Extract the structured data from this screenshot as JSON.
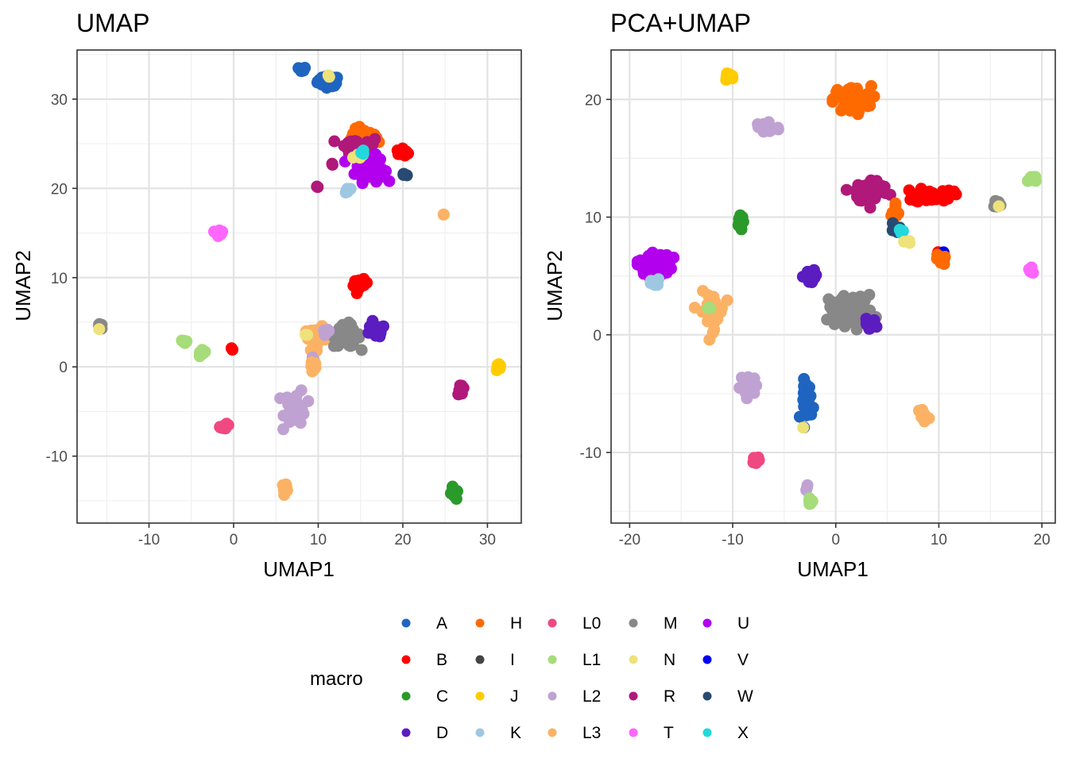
{
  "colors": {
    "A": "#1f64c0",
    "B": "#ff0000",
    "C": "#2a9a2a",
    "D": "#5b1cc0",
    "H": "#ff6a00",
    "I": "#444444",
    "J": "#ffcc00",
    "K": "#9ec8e2",
    "L0": "#f04880",
    "L1": "#a6dc7a",
    "L2": "#c0a2d2",
    "L3": "#fbb264",
    "M": "#888888",
    "N": "#eee27a",
    "R": "#b0187a",
    "T": "#ff66ff",
    "U": "#b200ee",
    "V": "#0000ee",
    "W": "#284a72",
    "X": "#22d8dc"
  },
  "legend": {
    "title": "macro",
    "columns": [
      [
        "A",
        "B",
        "C",
        "D"
      ],
      [
        "H",
        "I",
        "J",
        "K"
      ],
      [
        "L0",
        "L1",
        "L2",
        "L3"
      ],
      [
        "M",
        "N",
        "R",
        "T"
      ],
      [
        "U",
        "V",
        "W",
        "X"
      ]
    ]
  },
  "chart_data": [
    {
      "type": "scatter",
      "title": "UMAP",
      "xlabel": "UMAP1",
      "ylabel": "UMAP2",
      "xlim": [
        -18.5,
        34
      ],
      "ylim": [
        -17.5,
        35.5
      ],
      "xticks": [
        -10,
        0,
        10,
        20,
        30
      ],
      "yticks": [
        -10,
        0,
        10,
        20,
        30
      ],
      "grid": true,
      "clusters": [
        {
          "group": "A",
          "cx": 11.2,
          "cy": 32.0,
          "sx": 0.9,
          "sy": 0.4,
          "n": 50
        },
        {
          "group": "A",
          "cx": 8.1,
          "cy": 33.3,
          "sx": 0.3,
          "sy": 0.2,
          "n": 8
        },
        {
          "group": "N",
          "cx": 11.3,
          "cy": 32.6,
          "sx": 0.2,
          "sy": 0.1,
          "n": 2
        },
        {
          "group": "H",
          "cx": 15.4,
          "cy": 25.5,
          "sx": 1.2,
          "sy": 0.8,
          "n": 60
        },
        {
          "group": "R",
          "cx": 14.8,
          "cy": 24.6,
          "sx": 1.8,
          "sy": 0.9,
          "n": 35
        },
        {
          "group": "U",
          "cx": 16.1,
          "cy": 22.2,
          "sx": 1.2,
          "sy": 1.0,
          "n": 45
        },
        {
          "group": "B",
          "cx": 20.0,
          "cy": 24.0,
          "sx": 0.5,
          "sy": 0.3,
          "n": 15
        },
        {
          "group": "N",
          "cx": 14.7,
          "cy": 23.6,
          "sx": 0.4,
          "sy": 0.3,
          "n": 5
        },
        {
          "group": "X",
          "cx": 15.1,
          "cy": 24.1,
          "sx": 0.2,
          "sy": 0.2,
          "n": 3
        },
        {
          "group": "W",
          "cx": 20.1,
          "cy": 21.5,
          "sx": 0.2,
          "sy": 0.2,
          "n": 6
        },
        {
          "group": "R",
          "cx": 11.7,
          "cy": 22.7,
          "sx": 0.1,
          "sy": 0.1,
          "n": 2
        },
        {
          "group": "R",
          "cx": 9.9,
          "cy": 20.2,
          "sx": 0.1,
          "sy": 0.1,
          "n": 2
        },
        {
          "group": "K",
          "cx": 13.4,
          "cy": 19.7,
          "sx": 0.3,
          "sy": 0.2,
          "n": 5
        },
        {
          "group": "L3",
          "cx": 24.9,
          "cy": 17.1,
          "sx": 0.1,
          "sy": 0.1,
          "n": 2
        },
        {
          "group": "T",
          "cx": -1.7,
          "cy": 15.1,
          "sx": 0.3,
          "sy": 0.3,
          "n": 12
        },
        {
          "group": "B",
          "cx": 15.0,
          "cy": 9.2,
          "sx": 0.6,
          "sy": 0.4,
          "n": 18
        },
        {
          "group": "L3",
          "cx": 9.8,
          "cy": 3.2,
          "sx": 1.0,
          "sy": 0.9,
          "n": 25
        },
        {
          "group": "M",
          "cx": 13.4,
          "cy": 3.5,
          "sx": 1.1,
          "sy": 0.9,
          "n": 70
        },
        {
          "group": "D",
          "cx": 16.7,
          "cy": 4.0,
          "sx": 0.9,
          "sy": 0.5,
          "n": 25
        },
        {
          "group": "L2",
          "cx": 10.8,
          "cy": 3.8,
          "sx": 0.4,
          "sy": 0.4,
          "n": 5
        },
        {
          "group": "N",
          "cx": 8.6,
          "cy": 3.5,
          "sx": 0.2,
          "sy": 0.2,
          "n": 2
        },
        {
          "group": "L2",
          "cx": 9.4,
          "cy": 0.8,
          "sx": 0.2,
          "sy": 0.2,
          "n": 3
        },
        {
          "group": "L3",
          "cx": 9.5,
          "cy": 0.0,
          "sx": 0.3,
          "sy": 0.5,
          "n": 10
        },
        {
          "group": "M",
          "cx": -15.8,
          "cy": 4.5,
          "sx": 0.2,
          "sy": 0.2,
          "n": 8
        },
        {
          "group": "N",
          "cx": -15.7,
          "cy": 4.3,
          "sx": 0.1,
          "sy": 0.1,
          "n": 1
        },
        {
          "group": "L1",
          "cx": -5.8,
          "cy": 2.9,
          "sx": 0.3,
          "sy": 0.2,
          "n": 8
        },
        {
          "group": "L1",
          "cx": -3.8,
          "cy": 1.4,
          "sx": 0.4,
          "sy": 0.3,
          "n": 12
        },
        {
          "group": "B",
          "cx": -0.2,
          "cy": 2.0,
          "sx": 0.1,
          "sy": 0.1,
          "n": 2
        },
        {
          "group": "L2",
          "cx": 7.3,
          "cy": -4.5,
          "sx": 0.9,
          "sy": 1.4,
          "n": 40
        },
        {
          "group": "L0",
          "cx": -1.0,
          "cy": -6.7,
          "sx": 0.4,
          "sy": 0.2,
          "n": 12
        },
        {
          "group": "R",
          "cx": 26.9,
          "cy": -2.5,
          "sx": 0.3,
          "sy": 0.4,
          "n": 12
        },
        {
          "group": "J",
          "cx": 31.3,
          "cy": 0.0,
          "sx": 0.2,
          "sy": 0.4,
          "n": 10
        },
        {
          "group": "L3",
          "cx": 6.1,
          "cy": -13.5,
          "sx": 0.3,
          "sy": 0.3,
          "n": 12
        },
        {
          "group": "C",
          "cx": 26.0,
          "cy": -14.2,
          "sx": 0.2,
          "sy": 0.5,
          "n": 12
        }
      ]
    },
    {
      "type": "scatter",
      "title": "PCA+UMAP",
      "xlabel": "UMAP1",
      "ylabel": "UMAP2",
      "xlim": [
        -21.8,
        21.3
      ],
      "ylim": [
        -16,
        24.2
      ],
      "xticks": [
        -20,
        -10,
        0,
        10,
        20
      ],
      "yticks": [
        -10,
        0,
        10,
        20
      ],
      "grid": true,
      "clusters": [
        {
          "group": "J",
          "cx": -10.4,
          "cy": 21.9,
          "sx": 0.4,
          "sy": 0.3,
          "n": 12
        },
        {
          "group": "H",
          "cx": 1.6,
          "cy": 20.0,
          "sx": 1.3,
          "sy": 0.8,
          "n": 60
        },
        {
          "group": "L2",
          "cx": -6.8,
          "cy": 17.6,
          "sx": 1.0,
          "sy": 0.5,
          "n": 18
        },
        {
          "group": "R",
          "cx": 3.5,
          "cy": 12.2,
          "sx": 1.2,
          "sy": 0.7,
          "n": 60
        },
        {
          "group": "B",
          "cx": 9.5,
          "cy": 11.9,
          "sx": 1.3,
          "sy": 0.5,
          "n": 30
        },
        {
          "group": "H",
          "cx": 5.8,
          "cy": 10.8,
          "sx": 0.4,
          "sy": 0.5,
          "n": 8
        },
        {
          "group": "M",
          "cx": 15.6,
          "cy": 11.1,
          "sx": 0.3,
          "sy": 0.3,
          "n": 10
        },
        {
          "group": "N",
          "cx": 15.8,
          "cy": 11.0,
          "sx": 0.1,
          "sy": 0.1,
          "n": 1
        },
        {
          "group": "L1",
          "cx": 19.0,
          "cy": 13.2,
          "sx": 0.5,
          "sy": 0.3,
          "n": 12
        },
        {
          "group": "C",
          "cx": -9.4,
          "cy": 9.5,
          "sx": 0.3,
          "sy": 0.4,
          "n": 12
        },
        {
          "group": "W",
          "cx": 5.7,
          "cy": 9.0,
          "sx": 0.3,
          "sy": 0.4,
          "n": 6
        },
        {
          "group": "X",
          "cx": 6.3,
          "cy": 8.7,
          "sx": 0.3,
          "sy": 0.3,
          "n": 4
        },
        {
          "group": "N",
          "cx": 6.8,
          "cy": 7.9,
          "sx": 0.3,
          "sy": 0.2,
          "n": 4
        },
        {
          "group": "B",
          "cx": 10.1,
          "cy": 6.8,
          "sx": 0.2,
          "sy": 0.2,
          "n": 4
        },
        {
          "group": "V",
          "cx": 10.4,
          "cy": 6.8,
          "sx": 0.2,
          "sy": 0.2,
          "n": 4
        },
        {
          "group": "H",
          "cx": 10.2,
          "cy": 6.4,
          "sx": 0.3,
          "sy": 0.3,
          "n": 10
        },
        {
          "group": "U",
          "cx": -17.6,
          "cy": 6.0,
          "sx": 1.2,
          "sy": 0.8,
          "n": 40
        },
        {
          "group": "K",
          "cx": -17.5,
          "cy": 4.3,
          "sx": 0.3,
          "sy": 0.3,
          "n": 8
        },
        {
          "group": "T",
          "cx": 18.9,
          "cy": 5.5,
          "sx": 0.3,
          "sy": 0.3,
          "n": 10
        },
        {
          "group": "D",
          "cx": -2.4,
          "cy": 4.9,
          "sx": 0.5,
          "sy": 0.4,
          "n": 20
        },
        {
          "group": "M",
          "cx": 1.5,
          "cy": 2.1,
          "sx": 1.5,
          "sy": 0.9,
          "n": 90
        },
        {
          "group": "D",
          "cx": 3.2,
          "cy": 0.9,
          "sx": 0.5,
          "sy": 0.3,
          "n": 12
        },
        {
          "group": "L3",
          "cx": -12.0,
          "cy": 2.0,
          "sx": 0.8,
          "sy": 1.1,
          "n": 45
        },
        {
          "group": "L1",
          "cx": -12.4,
          "cy": 2.4,
          "sx": 0.2,
          "sy": 0.2,
          "n": 3
        },
        {
          "group": "L2",
          "cx": -8.4,
          "cy": -4.3,
          "sx": 0.6,
          "sy": 0.6,
          "n": 25
        },
        {
          "group": "A",
          "cx": -2.7,
          "cy": -5.5,
          "sx": 0.4,
          "sy": 1.2,
          "n": 30
        },
        {
          "group": "N",
          "cx": -2.9,
          "cy": -7.9,
          "sx": 0.1,
          "sy": 0.1,
          "n": 1
        },
        {
          "group": "L3",
          "cx": 8.5,
          "cy": -6.8,
          "sx": 0.3,
          "sy": 0.4,
          "n": 10
        },
        {
          "group": "L0",
          "cx": -7.7,
          "cy": -10.6,
          "sx": 0.2,
          "sy": 0.2,
          "n": 10
        },
        {
          "group": "L2",
          "cx": -2.8,
          "cy": -12.9,
          "sx": 0.1,
          "sy": 0.2,
          "n": 3
        },
        {
          "group": "L1",
          "cx": -2.5,
          "cy": -14.2,
          "sx": 0.2,
          "sy": 0.2,
          "n": 8
        }
      ]
    }
  ]
}
